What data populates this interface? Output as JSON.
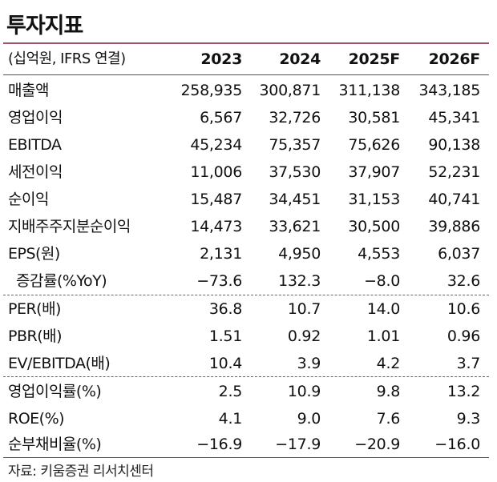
{
  "title": "투자지표",
  "header": {
    "unit": "(십억원, IFRS 연결)",
    "years": [
      "2023",
      "2024",
      "2025F",
      "2026F"
    ]
  },
  "rows": [
    {
      "label": "매출액",
      "values": [
        "258,935",
        "300,871",
        "311,138",
        "343,185"
      ]
    },
    {
      "label": "영업이익",
      "values": [
        "6,567",
        "32,726",
        "30,581",
        "45,341"
      ]
    },
    {
      "label": "EBITDA",
      "values": [
        "45,234",
        "75,357",
        "75,626",
        "90,138"
      ]
    },
    {
      "label": "세전이익",
      "values": [
        "11,006",
        "37,530",
        "37,907",
        "52,231"
      ]
    },
    {
      "label": "순이익",
      "values": [
        "15,487",
        "34,451",
        "31,153",
        "40,741"
      ]
    },
    {
      "label": "지배주주지분순이익",
      "values": [
        "14,473",
        "33,621",
        "30,500",
        "39,886"
      ]
    },
    {
      "label": "EPS(원)",
      "values": [
        "2,131",
        "4,950",
        "4,553",
        "6,037"
      ]
    },
    {
      "label": "증감률(%YoY)",
      "values": [
        "−73.6",
        "132.3",
        "−8.0",
        "32.6"
      ]
    },
    {
      "label": "PER(배)",
      "values": [
        "36.8",
        "10.7",
        "14.0",
        "10.6"
      ]
    },
    {
      "label": "PBR(배)",
      "values": [
        "1.51",
        "0.92",
        "1.01",
        "0.96"
      ]
    },
    {
      "label": "EV/EBITDA(배)",
      "values": [
        "10.4",
        "3.9",
        "4.2",
        "3.7"
      ]
    },
    {
      "label": "영업이익률(%)",
      "values": [
        "2.5",
        "10.9",
        "9.8",
        "13.2"
      ]
    },
    {
      "label": "ROE(%)",
      "values": [
        "4.1",
        "9.0",
        "7.6",
        "9.3"
      ]
    },
    {
      "label": "순부채비율(%)",
      "values": [
        "−16.9",
        "−17.9",
        "−20.9",
        "−16.0"
      ]
    }
  ],
  "source": "자료: 키움증권 리서치센터"
}
